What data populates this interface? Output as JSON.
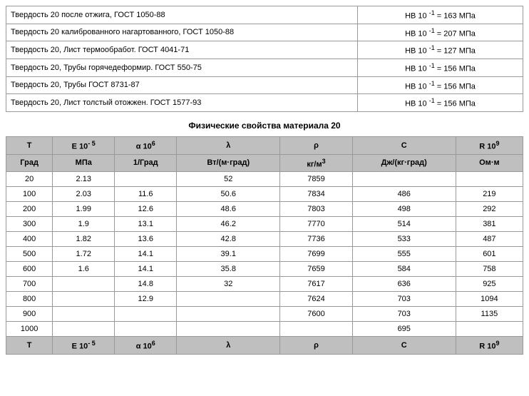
{
  "hardness_table": {
    "rows": [
      {
        "desc": "Твердость 20 после отжига, ГОСТ 1050-88",
        "prefix": "HB 10",
        "exp": "-1",
        "eq": " = 163   МПа"
      },
      {
        "desc": "Твердость 20 калиброванного нагартованного, ГОСТ 1050-88",
        "prefix": "HB 10",
        "exp": "-1",
        "eq": " = 207   МПа"
      },
      {
        "desc": "Твердость 20, Лист термообработ. ГОСТ 4041-71",
        "prefix": "HB 10",
        "exp": "-1",
        "eq": " = 127   МПа"
      },
      {
        "desc": "Твердость 20, Трубы горячедеформир. ГОСТ 550-75",
        "prefix": "HB 10",
        "exp": "-1",
        "eq": " = 156   МПа"
      },
      {
        "desc": "Твердость 20, Трубы ГОСТ 8731-87",
        "prefix": "HB 10",
        "exp": "-1",
        "eq": " = 156   МПа"
      },
      {
        "desc": "Твердость 20, Лист толстый отожжен. ГОСТ 1577-93",
        "prefix": "HB 10",
        "exp": "-1",
        "eq": " = 156   МПа"
      }
    ]
  },
  "section_title": "Физические свойства материала 20",
  "phys_table": {
    "header1": {
      "c0": "T",
      "c1_pre": "E 10",
      "c1_sup": "- 5",
      "c2_pre": "α 10",
      "c2_sup": "6",
      "c3": "λ",
      "c4": "ρ",
      "c5": "C",
      "c6_pre": "R 10",
      "c6_sup": "9"
    },
    "header2": {
      "c0": "Град",
      "c1": "МПа",
      "c2": "1/Град",
      "c3": "Вт/(м·град)",
      "c4_pre": "кг/м",
      "c4_sup": "3",
      "c5": "Дж/(кг·град)",
      "c6": "Ом·м"
    },
    "rows": [
      {
        "c0": "20",
        "c1": "2.13",
        "c2": "",
        "c3": "52",
        "c4": "7859",
        "c5": "",
        "c6": ""
      },
      {
        "c0": "100",
        "c1": "2.03",
        "c2": "11.6",
        "c3": "50.6",
        "c4": "7834",
        "c5": "486",
        "c6": "219"
      },
      {
        "c0": "200",
        "c1": "1.99",
        "c2": "12.6",
        "c3": "48.6",
        "c4": "7803",
        "c5": "498",
        "c6": "292"
      },
      {
        "c0": "300",
        "c1": "1.9",
        "c2": "13.1",
        "c3": "46.2",
        "c4": "7770",
        "c5": "514",
        "c6": "381"
      },
      {
        "c0": "400",
        "c1": "1.82",
        "c2": "13.6",
        "c3": "42.8",
        "c4": "7736",
        "c5": "533",
        "c6": "487"
      },
      {
        "c0": "500",
        "c1": "1.72",
        "c2": "14.1",
        "c3": "39.1",
        "c4": "7699",
        "c5": "555",
        "c6": "601"
      },
      {
        "c0": "600",
        "c1": "1.6",
        "c2": "14.1",
        "c3": "35.8",
        "c4": "7659",
        "c5": "584",
        "c6": "758"
      },
      {
        "c0": "700",
        "c1": "",
        "c2": "14.8",
        "c3": "32",
        "c4": "7617",
        "c5": "636",
        "c6": "925"
      },
      {
        "c0": "800",
        "c1": "",
        "c2": "12.9",
        "c3": "",
        "c4": "7624",
        "c5": "703",
        "c6": "1094"
      },
      {
        "c0": "900",
        "c1": "",
        "c2": "",
        "c3": "",
        "c4": "7600",
        "c5": "703",
        "c6": "1135"
      },
      {
        "c0": "1000",
        "c1": "",
        "c2": "",
        "c3": "",
        "c4": "",
        "c5": "695",
        "c6": ""
      }
    ],
    "col_widths": [
      "9%",
      "12%",
      "12%",
      "20%",
      "14%",
      "20%",
      "13%"
    ]
  }
}
